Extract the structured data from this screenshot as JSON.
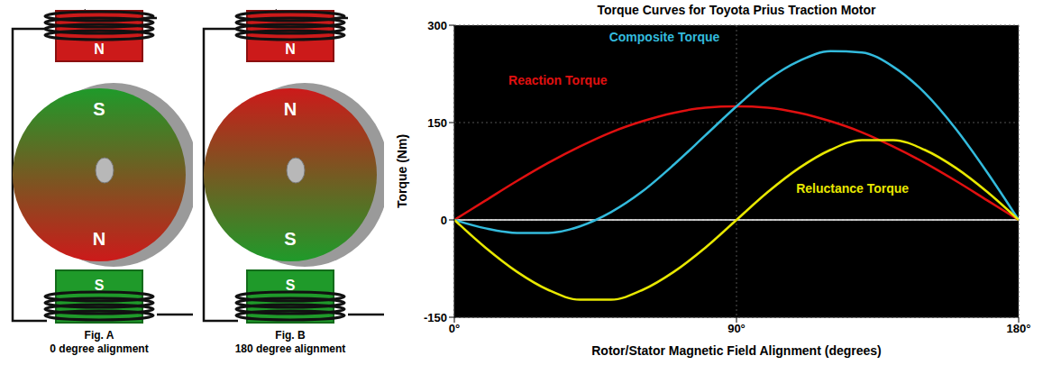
{
  "figures": [
    {
      "top_magnet": "N",
      "bottom_magnet": "S",
      "rotor_top": "S",
      "rotor_bottom": "N",
      "caption": "Fig. A",
      "subcaption": "0 degree alignment"
    },
    {
      "top_magnet": "N",
      "bottom_magnet": "S",
      "rotor_top": "N",
      "rotor_bottom": "S",
      "caption": "Fig. B",
      "subcaption": "180 degree alignment"
    }
  ],
  "chart_data": {
    "type": "line",
    "title": "Torque Curves for Toyota Prius Traction Motor",
    "x_label": "Rotor/Stator Magnetic Field Alignment (degrees)",
    "y_label": "Torque (Nm)",
    "x": [
      0,
      10,
      20,
      30,
      40,
      50,
      60,
      70,
      80,
      90,
      100,
      110,
      120,
      130,
      140,
      150,
      160,
      170,
      180
    ],
    "series": [
      {
        "name": "Reaction Torque",
        "color": "#e01010",
        "values": [
          0,
          30,
          60,
          88,
          113,
          135,
          152,
          165,
          173,
          175,
          173,
          165,
          152,
          135,
          113,
          88,
          60,
          30,
          0
        ]
      },
      {
        "name": "Composite Torque",
        "color": "#33bbdd",
        "values": [
          0,
          -13,
          -20,
          -20,
          -10,
          12,
          44,
          85,
          130,
          175,
          216,
          245,
          260,
          258,
          236,
          196,
          140,
          73,
          0
        ]
      },
      {
        "name": "Reluctance Torque",
        "color": "#e8e800",
        "values": [
          0,
          -43,
          -80,
          -108,
          -123,
          -123,
          -108,
          -80,
          -43,
          0,
          43,
          80,
          108,
          123,
          123,
          108,
          80,
          43,
          0
        ]
      }
    ],
    "xlim": [
      0,
      180
    ],
    "xticks": [
      {
        "value": 0,
        "label": "0°"
      },
      {
        "value": 90,
        "label": "90°"
      },
      {
        "value": 180,
        "label": "180°"
      }
    ],
    "ylim": [
      -150,
      300
    ],
    "yticks": [
      -150,
      0,
      150,
      300
    ],
    "grid": true
  }
}
